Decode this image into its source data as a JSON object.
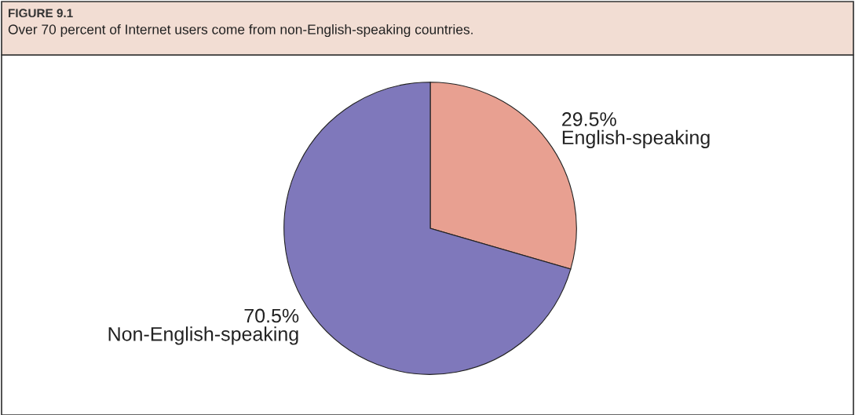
{
  "chart_data": {
    "type": "pie",
    "title": "FIGURE 9.1",
    "subtitle": "Over 70 percent of Internet users come from non-English-speaking countries.",
    "categories": [
      "English-speaking",
      "Non-English-speaking"
    ],
    "values": [
      29.5,
      70.5
    ],
    "colors": [
      "#e8a091",
      "#7f78bb"
    ],
    "value_labels": [
      "29.5%",
      "70.5%"
    ]
  }
}
